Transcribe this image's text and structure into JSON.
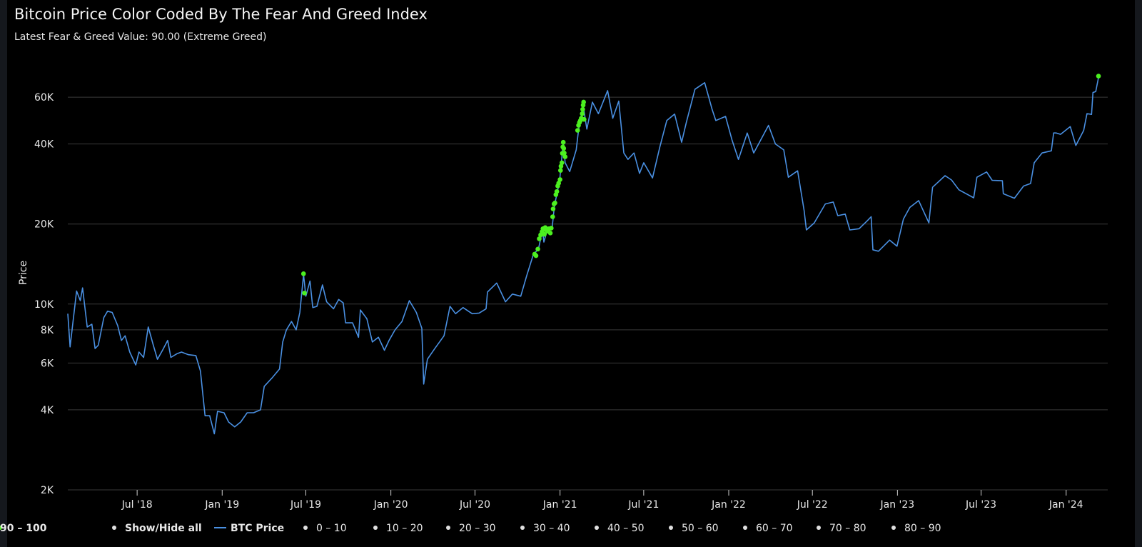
{
  "header": {
    "title": "Bitcoin Price Color Coded By The Fear And Greed Index",
    "subtitle": "Latest Fear & Greed Value: 90.00 (Extreme Greed)"
  },
  "colors": {
    "background": "#000000",
    "btc_line": "#4a90e2",
    "extreme_greed": "#4cf01f",
    "grid": "#3a3a3a",
    "legend_dot_inactive": "#e0e0e0"
  },
  "legend": {
    "show_hide_label": "Show/Hide all",
    "items": [
      {
        "label": "BTC Price",
        "kind": "line",
        "color": "#4a90e2"
      },
      {
        "label": "0 – 10",
        "kind": "dot",
        "color": "#e0e0e0"
      },
      {
        "label": "10 – 20",
        "kind": "dot",
        "color": "#e0e0e0"
      },
      {
        "label": "20 – 30",
        "kind": "dot",
        "color": "#e0e0e0"
      },
      {
        "label": "30 – 40",
        "kind": "dot",
        "color": "#e0e0e0"
      },
      {
        "label": "40 – 50",
        "kind": "dot",
        "color": "#e0e0e0"
      },
      {
        "label": "50 – 60",
        "kind": "dot",
        "color": "#e0e0e0"
      },
      {
        "label": "60 – 70",
        "kind": "dot",
        "color": "#e0e0e0"
      },
      {
        "label": "70 – 80",
        "kind": "dot",
        "color": "#e0e0e0"
      },
      {
        "label": "80 – 90",
        "kind": "dot",
        "color": "#e0e0e0"
      },
      {
        "label": "90 – 100",
        "kind": "dot",
        "color": "#4cf01f"
      }
    ]
  },
  "chart_data": {
    "type": "line",
    "title": "Bitcoin Price Color Coded By The Fear And Greed Index",
    "ylabel": "Price",
    "xlabel": "",
    "yscale": "log",
    "ylim": [
      2000,
      75000
    ],
    "xlim": [
      "2018-02-01",
      "2024-03-31"
    ],
    "y_ticks": [
      {
        "value": 2000,
        "label": "2K"
      },
      {
        "value": 4000,
        "label": "4K"
      },
      {
        "value": 6000,
        "label": "6K"
      },
      {
        "value": 8000,
        "label": "8K"
      },
      {
        "value": 10000,
        "label": "10K"
      },
      {
        "value": 20000,
        "label": "20K"
      },
      {
        "value": 40000,
        "label": "40K"
      },
      {
        "value": 60000,
        "label": "60K"
      }
    ],
    "x_ticks": [
      {
        "date": "2018-07-01",
        "label": "Jul '18"
      },
      {
        "date": "2019-01-01",
        "label": "Jan '19"
      },
      {
        "date": "2019-07-01",
        "label": "Jul '19"
      },
      {
        "date": "2020-01-01",
        "label": "Jan '20"
      },
      {
        "date": "2020-07-01",
        "label": "Jul '20"
      },
      {
        "date": "2021-01-01",
        "label": "Jan '21"
      },
      {
        "date": "2021-07-01",
        "label": "Jul '21"
      },
      {
        "date": "2022-01-01",
        "label": "Jan '22"
      },
      {
        "date": "2022-07-01",
        "label": "Jul '22"
      },
      {
        "date": "2023-01-01",
        "label": "Jan '23"
      },
      {
        "date": "2023-07-01",
        "label": "Jul '23"
      },
      {
        "date": "2024-01-01",
        "label": "Jan '24"
      }
    ],
    "grid": true,
    "legend_position": "bottom",
    "series": [
      {
        "name": "BTC Price",
        "points": [
          [
            "2018-02-01",
            9200
          ],
          [
            "2018-02-06",
            6900
          ],
          [
            "2018-02-12",
            8500
          ],
          [
            "2018-02-20",
            11200
          ],
          [
            "2018-02-28",
            10300
          ],
          [
            "2018-03-05",
            11500
          ],
          [
            "2018-03-15",
            8200
          ],
          [
            "2018-03-25",
            8400
          ],
          [
            "2018-04-01",
            6800
          ],
          [
            "2018-04-08",
            7000
          ],
          [
            "2018-04-20",
            8900
          ],
          [
            "2018-04-28",
            9400
          ],
          [
            "2018-05-08",
            9300
          ],
          [
            "2018-05-20",
            8300
          ],
          [
            "2018-05-28",
            7300
          ],
          [
            "2018-06-05",
            7600
          ],
          [
            "2018-06-15",
            6600
          ],
          [
            "2018-06-28",
            5900
          ],
          [
            "2018-07-05",
            6600
          ],
          [
            "2018-07-15",
            6300
          ],
          [
            "2018-07-25",
            8200
          ],
          [
            "2018-08-05",
            7000
          ],
          [
            "2018-08-14",
            6200
          ],
          [
            "2018-08-25",
            6700
          ],
          [
            "2018-09-05",
            7300
          ],
          [
            "2018-09-12",
            6300
          ],
          [
            "2018-09-25",
            6500
          ],
          [
            "2018-10-05",
            6600
          ],
          [
            "2018-10-20",
            6450
          ],
          [
            "2018-11-05",
            6400
          ],
          [
            "2018-11-15",
            5600
          ],
          [
            "2018-11-20",
            4600
          ],
          [
            "2018-11-25",
            3800
          ],
          [
            "2018-12-05",
            3800
          ],
          [
            "2018-12-15",
            3250
          ],
          [
            "2018-12-22",
            3950
          ],
          [
            "2019-01-05",
            3900
          ],
          [
            "2019-01-15",
            3600
          ],
          [
            "2019-01-28",
            3450
          ],
          [
            "2019-02-10",
            3600
          ],
          [
            "2019-02-24",
            3900
          ],
          [
            "2019-03-10",
            3900
          ],
          [
            "2019-03-25",
            4000
          ],
          [
            "2019-04-02",
            4900
          ],
          [
            "2019-04-20",
            5300
          ],
          [
            "2019-05-05",
            5700
          ],
          [
            "2019-05-12",
            7200
          ],
          [
            "2019-05-20",
            8000
          ],
          [
            "2019-05-31",
            8600
          ],
          [
            "2019-06-10",
            8000
          ],
          [
            "2019-06-18",
            9300
          ],
          [
            "2019-06-26",
            12900
          ],
          [
            "2019-07-01",
            10700
          ],
          [
            "2019-07-10",
            12200
          ],
          [
            "2019-07-16",
            9700
          ],
          [
            "2019-07-25",
            9800
          ],
          [
            "2019-08-06",
            11800
          ],
          [
            "2019-08-15",
            10200
          ],
          [
            "2019-08-30",
            9600
          ],
          [
            "2019-09-10",
            10400
          ],
          [
            "2019-09-20",
            10100
          ],
          [
            "2019-09-25",
            8500
          ],
          [
            "2019-10-10",
            8500
          ],
          [
            "2019-10-23",
            7500
          ],
          [
            "2019-10-27",
            9500
          ],
          [
            "2019-11-10",
            8800
          ],
          [
            "2019-11-22",
            7200
          ],
          [
            "2019-12-05",
            7500
          ],
          [
            "2019-12-18",
            6700
          ],
          [
            "2019-12-28",
            7300
          ],
          [
            "2020-01-10",
            8000
          ],
          [
            "2020-01-25",
            8600
          ],
          [
            "2020-02-10",
            10300
          ],
          [
            "2020-02-25",
            9300
          ],
          [
            "2020-03-08",
            8100
          ],
          [
            "2020-03-12",
            5000
          ],
          [
            "2020-03-20",
            6200
          ],
          [
            "2020-04-05",
            6800
          ],
          [
            "2020-04-25",
            7600
          ],
          [
            "2020-05-08",
            9800
          ],
          [
            "2020-05-20",
            9200
          ],
          [
            "2020-06-05",
            9700
          ],
          [
            "2020-06-25",
            9200
          ],
          [
            "2020-07-10",
            9250
          ],
          [
            "2020-07-25",
            9600
          ],
          [
            "2020-07-28",
            11100
          ],
          [
            "2020-08-17",
            12000
          ],
          [
            "2020-09-05",
            10200
          ],
          [
            "2020-09-20",
            10900
          ],
          [
            "2020-10-08",
            10700
          ],
          [
            "2020-10-21",
            12800
          ],
          [
            "2020-11-05",
            15500
          ],
          [
            "2020-11-15",
            16000
          ],
          [
            "2020-11-24",
            19000
          ],
          [
            "2020-11-27",
            17100
          ],
          [
            "2020-12-05",
            19200
          ],
          [
            "2020-12-15",
            19400
          ],
          [
            "2020-12-20",
            23500
          ],
          [
            "2020-12-31",
            29000
          ],
          [
            "2021-01-08",
            40700
          ],
          [
            "2021-01-12",
            34000
          ],
          [
            "2021-01-22",
            31500
          ],
          [
            "2021-02-05",
            38000
          ],
          [
            "2021-02-10",
            45000
          ],
          [
            "2021-02-20",
            56000
          ],
          [
            "2021-02-28",
            45500
          ],
          [
            "2021-03-12",
            57500
          ],
          [
            "2021-03-25",
            52000
          ],
          [
            "2021-04-14",
            63500
          ],
          [
            "2021-04-25",
            50000
          ],
          [
            "2021-05-08",
            58000
          ],
          [
            "2021-05-19",
            37000
          ],
          [
            "2021-05-28",
            35000
          ],
          [
            "2021-06-10",
            37000
          ],
          [
            "2021-06-22",
            31000
          ],
          [
            "2021-07-01",
            34000
          ],
          [
            "2021-07-20",
            29800
          ],
          [
            "2021-08-05",
            39000
          ],
          [
            "2021-08-20",
            49000
          ],
          [
            "2021-09-06",
            51800
          ],
          [
            "2021-09-21",
            40600
          ],
          [
            "2021-10-01",
            48000
          ],
          [
            "2021-10-20",
            64300
          ],
          [
            "2021-11-10",
            68000
          ],
          [
            "2021-11-26",
            54000
          ],
          [
            "2021-12-04",
            49000
          ],
          [
            "2021-12-25",
            50800
          ],
          [
            "2022-01-08",
            41500
          ],
          [
            "2022-01-22",
            35000
          ],
          [
            "2022-02-10",
            44000
          ],
          [
            "2022-02-24",
            37000
          ],
          [
            "2022-03-28",
            47000
          ],
          [
            "2022-04-12",
            40000
          ],
          [
            "2022-04-30",
            38000
          ],
          [
            "2022-05-10",
            30000
          ],
          [
            "2022-05-30",
            31700
          ],
          [
            "2022-06-13",
            22500
          ],
          [
            "2022-06-18",
            19000
          ],
          [
            "2022-07-05",
            20200
          ],
          [
            "2022-07-29",
            23800
          ],
          [
            "2022-08-15",
            24200
          ],
          [
            "2022-08-25",
            21500
          ],
          [
            "2022-09-10",
            21800
          ],
          [
            "2022-09-20",
            19000
          ],
          [
            "2022-10-10",
            19200
          ],
          [
            "2022-10-28",
            20600
          ],
          [
            "2022-11-05",
            21300
          ],
          [
            "2022-11-09",
            16000
          ],
          [
            "2022-11-21",
            15800
          ],
          [
            "2022-12-15",
            17400
          ],
          [
            "2022-12-31",
            16500
          ],
          [
            "2023-01-14",
            20900
          ],
          [
            "2023-01-28",
            23100
          ],
          [
            "2023-02-16",
            24500
          ],
          [
            "2023-03-10",
            20200
          ],
          [
            "2023-03-18",
            27500
          ],
          [
            "2023-04-14",
            30400
          ],
          [
            "2023-04-28",
            29300
          ],
          [
            "2023-05-14",
            26900
          ],
          [
            "2023-06-15",
            25100
          ],
          [
            "2023-06-22",
            30000
          ],
          [
            "2023-07-13",
            31400
          ],
          [
            "2023-07-25",
            29200
          ],
          [
            "2023-08-16",
            29100
          ],
          [
            "2023-08-18",
            26000
          ],
          [
            "2023-09-11",
            25000
          ],
          [
            "2023-10-01",
            27800
          ],
          [
            "2023-10-16",
            28400
          ],
          [
            "2023-10-24",
            34000
          ],
          [
            "2023-11-10",
            37000
          ],
          [
            "2023-11-30",
            37700
          ],
          [
            "2023-12-05",
            44000
          ],
          [
            "2023-12-10",
            44000
          ],
          [
            "2023-12-20",
            43500
          ],
          [
            "2024-01-10",
            46500
          ],
          [
            "2024-01-22",
            39500
          ],
          [
            "2024-02-08",
            45000
          ],
          [
            "2024-02-15",
            52000
          ],
          [
            "2024-02-25",
            51700
          ],
          [
            "2024-02-28",
            62500
          ],
          [
            "2024-03-05",
            63000
          ],
          [
            "2024-03-11",
            71000
          ]
        ]
      },
      {
        "name": "90 – 100",
        "marker": "dot",
        "points": [
          [
            "2019-06-26",
            13000
          ],
          [
            "2019-06-28",
            11000
          ],
          [
            "2020-11-07",
            15400
          ],
          [
            "2020-11-10",
            15200
          ],
          [
            "2020-11-14",
            16100
          ],
          [
            "2020-11-17",
            17600
          ],
          [
            "2020-11-20",
            18200
          ],
          [
            "2020-11-23",
            18700
          ],
          [
            "2020-11-25",
            19200
          ],
          [
            "2020-11-28",
            18300
          ],
          [
            "2020-11-30",
            19400
          ],
          [
            "2020-12-02",
            19000
          ],
          [
            "2020-12-05",
            18800
          ],
          [
            "2020-12-08",
            19200
          ],
          [
            "2020-12-11",
            18500
          ],
          [
            "2020-12-13",
            19300
          ],
          [
            "2020-12-16",
            21300
          ],
          [
            "2020-12-17",
            22800
          ],
          [
            "2020-12-19",
            23800
          ],
          [
            "2020-12-21",
            24000
          ],
          [
            "2020-12-23",
            25800
          ],
          [
            "2020-12-25",
            26500
          ],
          [
            "2020-12-27",
            27800
          ],
          [
            "2020-12-29",
            28500
          ],
          [
            "2021-01-01",
            29400
          ],
          [
            "2021-01-02",
            31800
          ],
          [
            "2021-01-03",
            33000
          ],
          [
            "2021-01-05",
            34000
          ],
          [
            "2021-01-06",
            36900
          ],
          [
            "2021-01-07",
            39000
          ],
          [
            "2021-01-08",
            40600
          ],
          [
            "2021-01-09",
            38500
          ],
          [
            "2021-01-10",
            37000
          ],
          [
            "2021-01-12",
            35800
          ],
          [
            "2021-02-08",
            45000
          ],
          [
            "2021-02-10",
            47000
          ],
          [
            "2021-02-12",
            48200
          ],
          [
            "2021-02-14",
            49000
          ],
          [
            "2021-02-16",
            50000
          ],
          [
            "2021-02-18",
            52000
          ],
          [
            "2021-02-19",
            54000
          ],
          [
            "2021-02-20",
            56000
          ],
          [
            "2021-02-21",
            57500
          ],
          [
            "2021-02-22",
            49500
          ],
          [
            "2024-03-11",
            72000
          ]
        ]
      }
    ]
  }
}
